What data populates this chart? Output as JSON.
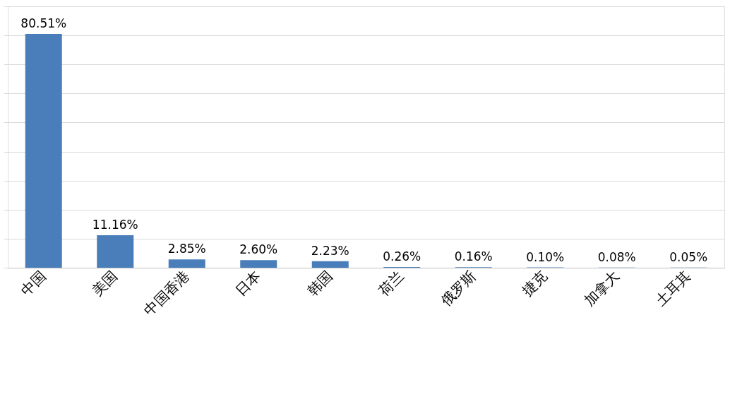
{
  "chart_data": {
    "type": "bar",
    "categories": [
      "中国",
      "美国",
      "中国香港",
      "日本",
      "韩国",
      "荷兰",
      "俄罗斯",
      "捷克",
      "加拿大",
      "土耳其"
    ],
    "values": [
      80.51,
      11.16,
      2.85,
      2.6,
      2.23,
      0.26,
      0.16,
      0.1,
      0.08,
      0.05
    ],
    "value_labels": [
      "80.51%",
      "11.16%",
      "2.85%",
      "2.60%",
      "2.23%",
      "0.26%",
      "0.16%",
      "0.10%",
      "0.08%",
      "0.05%"
    ],
    "color": "#4a7ebb",
    "ylim": [
      0,
      90
    ],
    "yticks": [
      {
        "value": 0,
        "label": null
      },
      {
        "value": 10,
        "label": null
      },
      {
        "value": 20,
        "label": null
      },
      {
        "value": 30,
        "label": null
      },
      {
        "value": 40,
        "label": null
      },
      {
        "value": 50,
        "label": null
      },
      {
        "value": 60,
        "label": null
      },
      {
        "value": 70,
        "label": null
      },
      {
        "value": 80,
        "label": null
      },
      {
        "value": 90,
        "label": null
      }
    ],
    "tick_labels": "x",
    "grid": "y"
  }
}
